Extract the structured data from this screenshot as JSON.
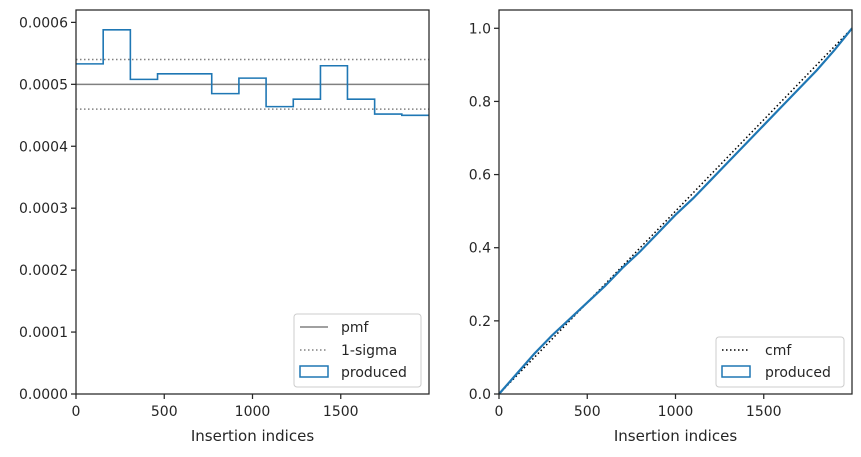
{
  "chart_data": [
    {
      "type": "histogram",
      "xlabel": "Insertion indices",
      "ylabel": "",
      "xlim": [
        0,
        2000
      ],
      "ylim": [
        0,
        0.00062
      ],
      "xticks": [
        0,
        500,
        1000,
        1500
      ],
      "xtick_labels": [
        "0",
        "500",
        "1000",
        "1500"
      ],
      "yticks": [
        0,
        0.0001,
        0.0002,
        0.0003,
        0.0004,
        0.0005,
        0.0006
      ],
      "ytick_labels": [
        "0.0000",
        "0.0001",
        "0.0002",
        "0.0003",
        "0.0004",
        "0.0005",
        "0.0006"
      ],
      "grid": false,
      "legend_position": "lower-right",
      "pmf": 0.0005,
      "sigma_upper": 0.00054,
      "sigma_lower": 0.00046,
      "bin_edges": [
        0,
        154,
        308,
        462,
        615,
        769,
        923,
        1077,
        1231,
        1385,
        1538,
        1692,
        1846,
        2000
      ],
      "produced": [
        0.000533,
        0.000588,
        0.000508,
        0.000517,
        0.000517,
        0.000485,
        0.00051,
        0.000464,
        0.000476,
        0.00053,
        0.000476,
        0.000452,
        0.00045
      ],
      "legend": [
        {
          "label": "pmf",
          "style": "solid",
          "color": "#808080"
        },
        {
          "label": "1-sigma",
          "style": "dotted",
          "color": "#808080"
        },
        {
          "label": "produced",
          "style": "box",
          "color": "#1f77b4"
        }
      ]
    },
    {
      "type": "line",
      "xlabel": "Insertion indices",
      "ylabel": "",
      "xlim": [
        0,
        2000
      ],
      "ylim": [
        0,
        1.05
      ],
      "xticks": [
        0,
        500,
        1000,
        1500
      ],
      "xtick_labels": [
        "0",
        "500",
        "1000",
        "1500"
      ],
      "yticks": [
        0,
        0.2,
        0.4,
        0.6,
        0.8,
        1.0
      ],
      "ytick_labels": [
        "0.0",
        "0.2",
        "0.4",
        "0.6",
        "0.8",
        "1.0"
      ],
      "grid": false,
      "legend_position": "lower-right",
      "cmf": {
        "x": [
          0,
          2000
        ],
        "y": [
          0,
          1
        ]
      },
      "produced": {
        "x": [
          0,
          100,
          200,
          300,
          400,
          500,
          600,
          700,
          800,
          900,
          1000,
          1100,
          1200,
          1300,
          1400,
          1500,
          1600,
          1700,
          1800,
          1900,
          2000
        ],
        "y": [
          0,
          0.055,
          0.11,
          0.16,
          0.205,
          0.25,
          0.295,
          0.345,
          0.39,
          0.44,
          0.49,
          0.535,
          0.585,
          0.635,
          0.685,
          0.735,
          0.785,
          0.835,
          0.885,
          0.94,
          1.0
        ]
      },
      "legend": [
        {
          "label": "cmf",
          "style": "dotted",
          "color": "#000000"
        },
        {
          "label": "produced",
          "style": "box",
          "color": "#1f77b4"
        }
      ]
    }
  ]
}
